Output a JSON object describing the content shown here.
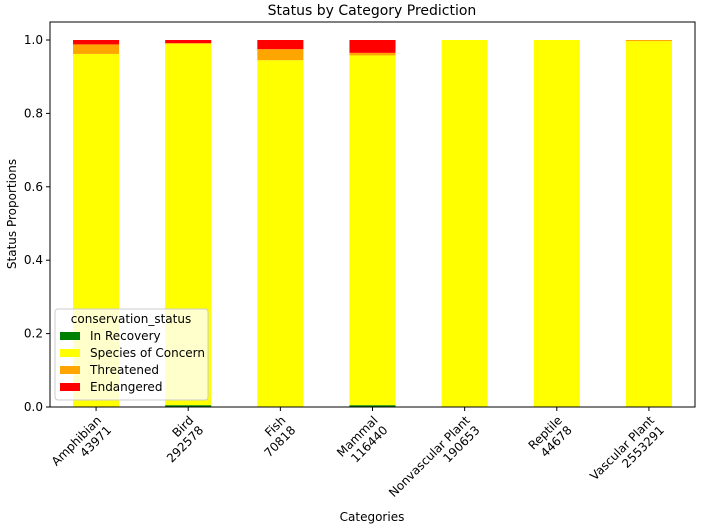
{
  "chart_data": {
    "type": "bar",
    "stacked": true,
    "title": "Status by Category Prediction",
    "xlabel": "Categories",
    "ylabel": "Status Proportions",
    "ylim": [
      0,
      1.0
    ],
    "yticks": [
      "0.0",
      "0.2",
      "0.4",
      "0.6",
      "0.8",
      "1.0"
    ],
    "grid": false,
    "categories": [
      {
        "name": "Amphibian",
        "count": "43971"
      },
      {
        "name": "Bird",
        "count": "292578"
      },
      {
        "name": "Fish",
        "count": "70818"
      },
      {
        "name": "Mammal",
        "count": "116440"
      },
      {
        "name": "Nonvascular Plant",
        "count": "190653"
      },
      {
        "name": "Reptile",
        "count": "44678"
      },
      {
        "name": "Vascular Plant",
        "count": "2553291"
      }
    ],
    "legend": {
      "title": "conservation_status",
      "placement": "lower-left"
    },
    "series": [
      {
        "name": "In Recovery",
        "color": "#008000",
        "values": [
          0.0,
          0.005,
          0.0,
          0.005,
          0.0,
          0.0,
          0.0
        ]
      },
      {
        "name": "Species of Concern",
        "color": "#ffff00",
        "values": [
          0.962,
          0.986,
          0.945,
          0.953,
          1.0,
          1.0,
          0.997
        ]
      },
      {
        "name": "Threatened",
        "color": "#ffa500",
        "values": [
          0.026,
          0.0,
          0.03,
          0.007,
          0.0,
          0.0,
          0.003
        ]
      },
      {
        "name": "Endangered",
        "color": "#ff0000",
        "values": [
          0.012,
          0.009,
          0.025,
          0.035,
          0.0,
          0.0,
          0.0
        ]
      }
    ]
  }
}
